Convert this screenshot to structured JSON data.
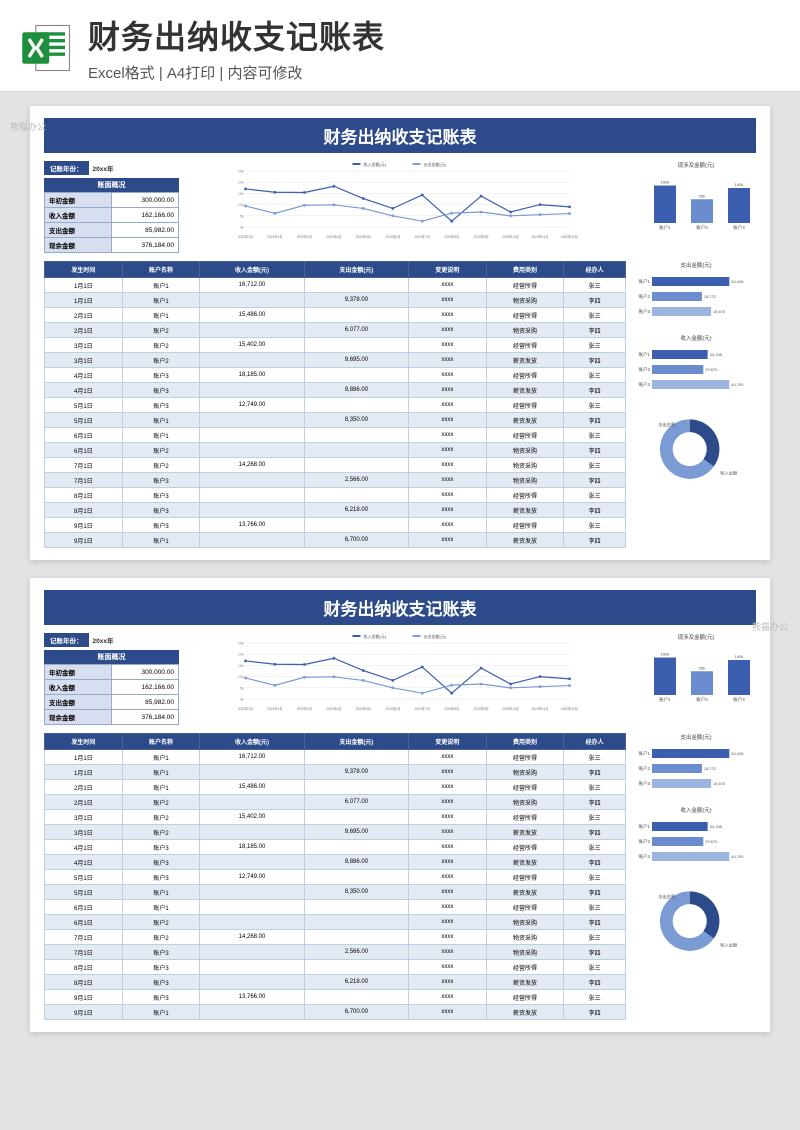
{
  "header": {
    "title": "财务出纳收支记账表",
    "subtitle": "Excel格式 | A4打印 | 内容可修改"
  },
  "sheet": {
    "title": "财务出纳收支记账表",
    "year_label": "记账年份：",
    "year_value": "20xx年",
    "summary_title": "账面概况",
    "summary": [
      {
        "label": "年初金额",
        "value": "300,000.00"
      },
      {
        "label": "收入金额",
        "value": "162,166.00"
      },
      {
        "label": "支出金额",
        "value": "85,982.00"
      },
      {
        "label": "现余金额",
        "value": "376,184.00"
      }
    ],
    "line_chart": {
      "type": "line",
      "series_labels": [
        "收入金额(元)",
        "支出金额(元)"
      ],
      "x_labels": [
        "2022年1月",
        "2022年2月",
        "2022年3月",
        "2022年4月",
        "2022年5月",
        "2022年6月",
        "2022年7月",
        "2022年8月",
        "2022年9月",
        "2022年10月",
        "2022年11月",
        "2022年12月"
      ],
      "income": [
        17000,
        15500,
        15400,
        18200,
        12700,
        8300,
        14300,
        2600,
        13800,
        6700,
        10000,
        9000
      ],
      "expense": [
        9400,
        6100,
        9700,
        9900,
        8300,
        5000,
        2600,
        6200,
        6700,
        5000,
        5500,
        6000
      ],
      "income_color": "#3b5fae",
      "expense_color": "#7a9bd4",
      "ylim": [
        0,
        25000
      ],
      "grid_color": "#e0e0e0"
    },
    "bar_chart_top": {
      "type": "bar",
      "title": "现涉及金额(元)",
      "categories": [
        "账户1",
        "账户2",
        "账户3"
      ],
      "values": [
        150000,
        95000,
        140000
      ],
      "colors": [
        "#3b5fae",
        "#6b8dd0",
        "#3b5fae"
      ],
      "ylim": [
        0,
        180000
      ]
    },
    "columns": [
      "发生时间",
      "账户名称",
      "收入金额(元)",
      "支出金额(元)",
      "变更说明",
      "费用类别",
      "经办人"
    ],
    "rows": [
      [
        "1月1日",
        "账户1",
        "16,712.00",
        "",
        "xxxx",
        "经营所得",
        "张三"
      ],
      [
        "1月1日",
        "账户1",
        "",
        "9,378.00",
        "xxxx",
        "物资采购",
        "李四"
      ],
      [
        "2月1日",
        "账户1",
        "15,486.00",
        "",
        "xxxx",
        "经营所得",
        "张三"
      ],
      [
        "2月1日",
        "账户2",
        "",
        "6,077.00",
        "xxxx",
        "物资采购",
        "李四"
      ],
      [
        "3月1日",
        "账户2",
        "15,402.00",
        "",
        "xxxx",
        "经营所得",
        "张三"
      ],
      [
        "3月1日",
        "账户2",
        "",
        "9,695.00",
        "xxxx",
        "薪资发放",
        "李四"
      ],
      [
        "4月1日",
        "账户3",
        "18,185.00",
        "",
        "xxxx",
        "经营所得",
        "张三"
      ],
      [
        "4月1日",
        "账户3",
        "",
        "9,886.00",
        "xxxx",
        "薪资发放",
        "李四"
      ],
      [
        "5月1日",
        "账户3",
        "12,749.00",
        "",
        "xxxx",
        "经营所得",
        "张三"
      ],
      [
        "5月1日",
        "账户1",
        "",
        "8,350.00",
        "xxxx",
        "薪资发放",
        "李四"
      ],
      [
        "6月1日",
        "账户1",
        "",
        "",
        "xxxx",
        "经营所得",
        "张三"
      ],
      [
        "6月1日",
        "账户2",
        "",
        "",
        "xxxx",
        "物资采购",
        "李四"
      ],
      [
        "7月1日",
        "账户2",
        "14,268.00",
        "",
        "xxxx",
        "物资采购",
        "张三"
      ],
      [
        "7月1日",
        "账户3",
        "",
        "2,566.00",
        "xxxx",
        "物资采购",
        "李四"
      ],
      [
        "8月1日",
        "账户3",
        "",
        "",
        "xxxx",
        "经营所得",
        "张三"
      ],
      [
        "8月1日",
        "账户3",
        "",
        "6,218.00",
        "xxxx",
        "薪资发放",
        "李四"
      ],
      [
        "9月1日",
        "账户3",
        "13,766.00",
        "",
        "xxxx",
        "经营所得",
        "张三"
      ],
      [
        "9月1日",
        "账户1",
        "",
        "6,700.00",
        "xxxx",
        "薪资发放",
        "李四"
      ]
    ],
    "hbar_expense": {
      "type": "hbar",
      "title": "支出金额(元)",
      "labels": [
        "账户1",
        "账户2",
        "账户3"
      ],
      "values": [
        24428,
        15772,
        18670
      ],
      "colors": [
        "#3b5fae",
        "#6b8dd0",
        "#9cb4e0"
      ]
    },
    "hbar_income": {
      "type": "hbar",
      "title": "收入金额(元)",
      "labels": [
        "账户1",
        "账户2",
        "账户3"
      ],
      "values": [
        32198,
        29670,
        44700
      ],
      "colors": [
        "#3b5fae",
        "#6b8dd0",
        "#9cb4e0"
      ]
    },
    "donut": {
      "type": "donut",
      "segments": [
        {
          "label": "支出金额",
          "pct": 35,
          "color": "#2d4a8a"
        },
        {
          "label": "收入金额",
          "pct": 65,
          "color": "#7a9bd4"
        }
      ]
    }
  }
}
